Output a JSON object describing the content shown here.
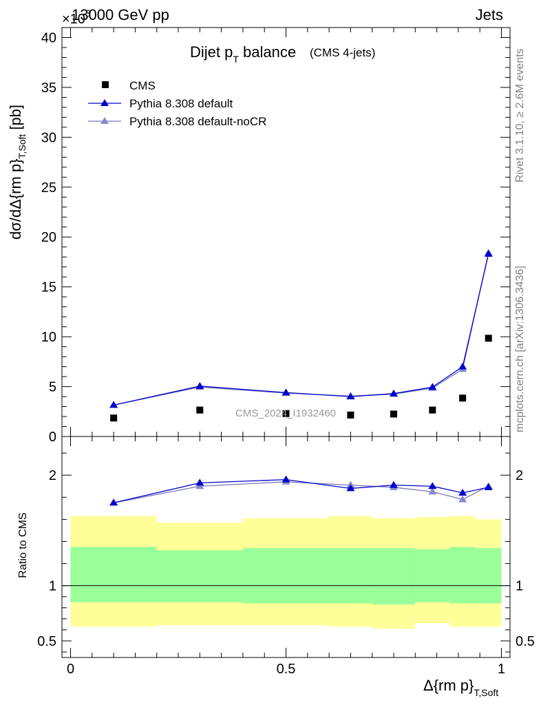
{
  "header": {
    "energy_label": "13000 GeV pp",
    "process_label": "Jets",
    "exponent_label": "×10",
    "exponent_power": "3"
  },
  "chart_data": [
    {
      "type": "line",
      "title_main": "Dijet p",
      "title_sub": "T",
      "title_rest": " balance",
      "title_note": "(CMS 4-jets)",
      "ylabel": "dσ/dΔ{rm p}",
      "ylabel_sub": "T,Soft",
      "ylabel_unit": "[pb]",
      "ylim": [
        0,
        41000
      ],
      "y_ticks": [
        "0",
        "5",
        "10",
        "15",
        "20",
        "25",
        "30",
        "35",
        "40"
      ],
      "watermark": "CMS_2024_I1932460",
      "legend_position": "top-left",
      "legend": [
        "CMS",
        "Pythia 8.308 default",
        "Pythia 8.308 default-noCR"
      ],
      "x": [
        0.1,
        0.3,
        0.5,
        0.65,
        0.75,
        0.84,
        0.91,
        0.97
      ],
      "series": [
        {
          "name": "CMS",
          "style": "markers",
          "values": [
            1850,
            2650,
            2300,
            2150,
            2250,
            2650,
            3850,
            9850
          ]
        },
        {
          "name": "Pythia 8.308 default",
          "style": "line-triangles",
          "values": [
            3150,
            5050,
            4400,
            4000,
            4300,
            4950,
            7000,
            18300
          ]
        },
        {
          "name": "Pythia 8.308 default-noCR",
          "style": "line-triangles",
          "values": [
            3150,
            4950,
            4350,
            4050,
            4250,
            4850,
            6750,
            18400
          ]
        }
      ]
    },
    {
      "type": "line",
      "ylabel": "Ratio to CMS",
      "xlabel": "Δ{rm p}",
      "xlabel_sub": "T,Soft",
      "xlim": [
        -0.02,
        1.02
      ],
      "ylim": [
        0.35,
        2.35
      ],
      "x_ticks": [
        "0",
        "0.5",
        "1"
      ],
      "y_ticks": [
        "0.5",
        "1",
        "2"
      ],
      "reference_line": 1,
      "bands": [
        {
          "x_from": 0.0,
          "x_to": 0.2,
          "inner": [
            0.85,
            1.35
          ],
          "outer": [
            0.63,
            1.63
          ]
        },
        {
          "x_from": 0.2,
          "x_to": 0.4,
          "inner": [
            0.85,
            1.32
          ],
          "outer": [
            0.64,
            1.57
          ]
        },
        {
          "x_from": 0.4,
          "x_to": 0.6,
          "inner": [
            0.84,
            1.34
          ],
          "outer": [
            0.64,
            1.61
          ]
        },
        {
          "x_from": 0.6,
          "x_to": 0.7,
          "inner": [
            0.84,
            1.34
          ],
          "outer": [
            0.63,
            1.63
          ]
        },
        {
          "x_from": 0.7,
          "x_to": 0.8,
          "inner": [
            0.83,
            1.34
          ],
          "outer": [
            0.61,
            1.61
          ]
        },
        {
          "x_from": 0.8,
          "x_to": 0.88,
          "inner": [
            0.85,
            1.33
          ],
          "outer": [
            0.66,
            1.62
          ]
        },
        {
          "x_from": 0.88,
          "x_to": 0.94,
          "inner": [
            0.84,
            1.35
          ],
          "outer": [
            0.63,
            1.63
          ]
        },
        {
          "x_from": 0.94,
          "x_to": 1.0,
          "inner": [
            0.84,
            1.34
          ],
          "outer": [
            0.63,
            1.6
          ]
        }
      ],
      "x": [
        0.1,
        0.3,
        0.5,
        0.65,
        0.75,
        0.84,
        0.91,
        0.97
      ],
      "series": [
        {
          "name": "Pythia 8.308 default",
          "values": [
            1.75,
            1.93,
            1.96,
            1.88,
            1.91,
            1.9,
            1.84,
            1.89
          ]
        },
        {
          "name": "Pythia 8.308 default-noCR",
          "values": [
            1.75,
            1.9,
            1.94,
            1.91,
            1.89,
            1.85,
            1.78,
            1.9
          ]
        }
      ]
    }
  ],
  "side_labels": {
    "rivet": "Rivet 3.1.10, ≥ 2.6M events",
    "mcplots": "mcplots.cern.ch [arXiv:1306.3436]"
  },
  "colors": {
    "cms": "#000000",
    "default": "#0000cc",
    "default_fill": "#0000cc",
    "nocr": "#7777bb",
    "nocr_fill": "#8888cc",
    "band_inner": "#99ff99",
    "band_outer": "#ffff99",
    "side_text": "#808080",
    "watermark": "#999999"
  }
}
